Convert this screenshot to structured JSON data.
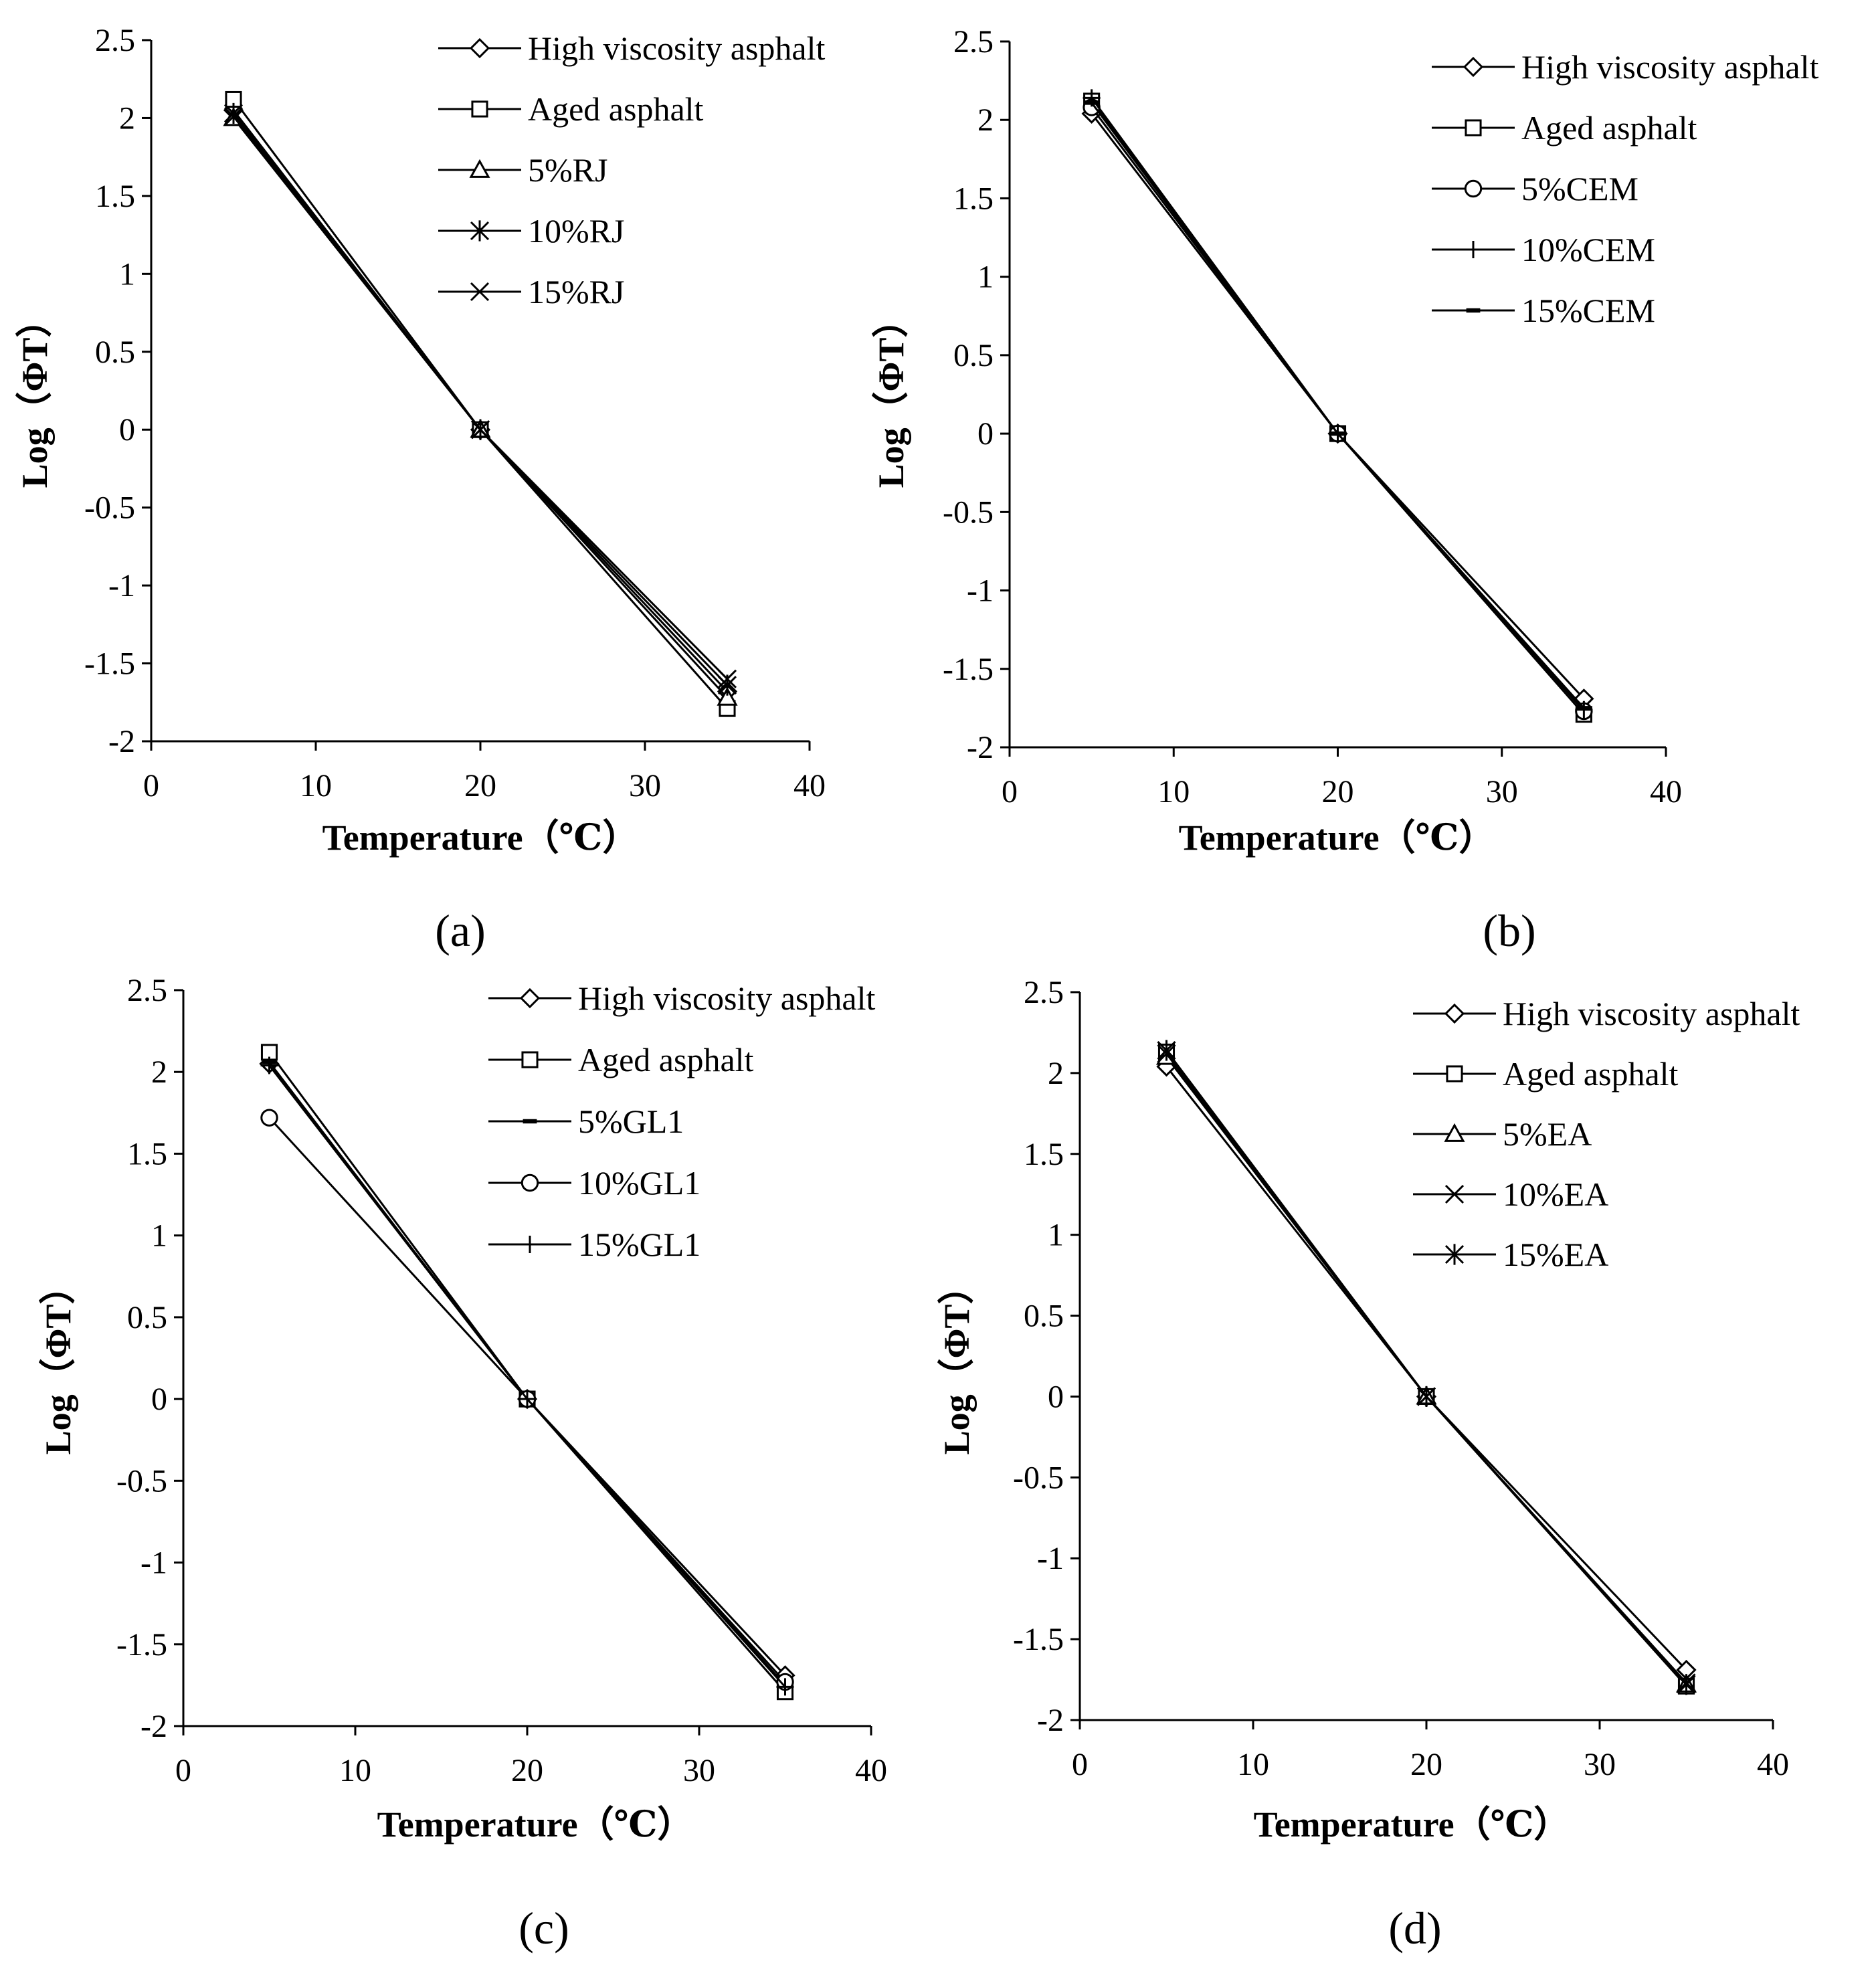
{
  "chart_data": [
    {
      "type": "line",
      "panel": "a",
      "xlabel": "Temperature（℃）",
      "ylabel": "Log（ΦT）",
      "xlim": [
        0,
        40
      ],
      "ylim": [
        -2,
        2.5
      ],
      "x_ticks": [
        "0",
        "10",
        "20",
        "30",
        "40"
      ],
      "y_ticks": [
        "2.5",
        "2",
        "1.5",
        "1",
        "0.5",
        "0",
        "-0.5",
        "-1",
        "-1.5",
        "-2"
      ],
      "x": [
        5,
        20,
        35
      ],
      "series": [
        {
          "name": "High viscosity asphalt",
          "marker": "diamond",
          "values": [
            2.05,
            0,
            -1.68
          ]
        },
        {
          "name": "Aged asphalt",
          "marker": "square",
          "values": [
            2.12,
            0,
            -1.79
          ]
        },
        {
          "name": "5%RJ",
          "marker": "triangle",
          "values": [
            2.0,
            0,
            -1.72
          ]
        },
        {
          "name": "10%RJ",
          "marker": "asterisk",
          "values": [
            2.03,
            0,
            -1.64
          ]
        },
        {
          "name": "15%RJ",
          "marker": "x",
          "values": [
            2.01,
            0,
            -1.6
          ]
        }
      ]
    },
    {
      "type": "line",
      "panel": "b",
      "xlabel": "Temperature（℃）",
      "ylabel": "Log（ΦT）",
      "xlim": [
        0,
        40
      ],
      "ylim": [
        -2,
        2.5
      ],
      "x_ticks": [
        "0",
        "10",
        "20",
        "30",
        "40"
      ],
      "y_ticks": [
        "2.5",
        "2",
        "1.5",
        "1",
        "0.5",
        "0",
        "-0.5",
        "-1",
        "-1.5",
        "-2"
      ],
      "x": [
        5,
        20,
        35
      ],
      "series": [
        {
          "name": "High viscosity asphalt",
          "marker": "diamond",
          "values": [
            2.04,
            0,
            -1.69
          ]
        },
        {
          "name": "Aged asphalt",
          "marker": "square",
          "values": [
            2.12,
            0,
            -1.79
          ]
        },
        {
          "name": "5%CEM",
          "marker": "circle",
          "values": [
            2.08,
            0,
            -1.77
          ]
        },
        {
          "name": "10%CEM",
          "marker": "plus",
          "values": [
            2.14,
            0,
            -1.76
          ]
        },
        {
          "name": "15%CEM",
          "marker": "dash",
          "values": [
            2.11,
            0,
            -1.75
          ]
        }
      ]
    },
    {
      "type": "line",
      "panel": "c",
      "xlabel": "Temperature（℃）",
      "ylabel": "Log（ΦT）",
      "xlim": [
        0,
        40
      ],
      "ylim": [
        -2,
        2.5
      ],
      "x_ticks": [
        "0",
        "10",
        "20",
        "30",
        "40"
      ],
      "y_ticks": [
        "2.5",
        "2",
        "1.5",
        "1",
        "0.5",
        "0",
        "-0.5",
        "-1",
        "-1.5",
        "-2"
      ],
      "x": [
        5,
        20,
        35
      ],
      "series": [
        {
          "name": "High viscosity asphalt",
          "marker": "diamond",
          "values": [
            2.05,
            0,
            -1.69
          ]
        },
        {
          "name": "Aged asphalt",
          "marker": "square",
          "values": [
            2.12,
            0,
            -1.79
          ]
        },
        {
          "name": "5%GL1",
          "marker": "dash",
          "values": [
            2.06,
            0,
            -1.75
          ]
        },
        {
          "name": "10%GL1",
          "marker": "circle",
          "values": [
            1.72,
            0,
            -1.73
          ]
        },
        {
          "name": "15%GL1",
          "marker": "plus",
          "values": [
            2.04,
            0,
            -1.76
          ]
        }
      ]
    },
    {
      "type": "line",
      "panel": "d",
      "xlabel": "Temperature（℃）",
      "ylabel": "Log（ΦT）",
      "xlim": [
        0,
        40
      ],
      "ylim": [
        -2,
        2.5
      ],
      "x_ticks": [
        "0",
        "10",
        "20",
        "30",
        "40"
      ],
      "y_ticks": [
        "2.5",
        "2",
        "1.5",
        "1",
        "0.5",
        "0",
        "-0.5",
        "-1",
        "-1.5",
        "-2"
      ],
      "x": [
        5,
        20,
        35
      ],
      "series": [
        {
          "name": "High viscosity asphalt",
          "marker": "diamond",
          "values": [
            2.04,
            0,
            -1.69
          ]
        },
        {
          "name": "Aged asphalt",
          "marker": "square",
          "values": [
            2.13,
            0,
            -1.79
          ]
        },
        {
          "name": "5%EA",
          "marker": "triangle",
          "values": [
            2.1,
            0,
            -1.78
          ]
        },
        {
          "name": "10%EA",
          "marker": "x",
          "values": [
            2.12,
            0,
            -1.77
          ]
        },
        {
          "name": "15%EA",
          "marker": "asterisk",
          "values": [
            2.14,
            0,
            -1.78
          ]
        }
      ]
    }
  ],
  "panel_labels": [
    "(a)",
    "(b)",
    "(c)",
    "(d)"
  ]
}
